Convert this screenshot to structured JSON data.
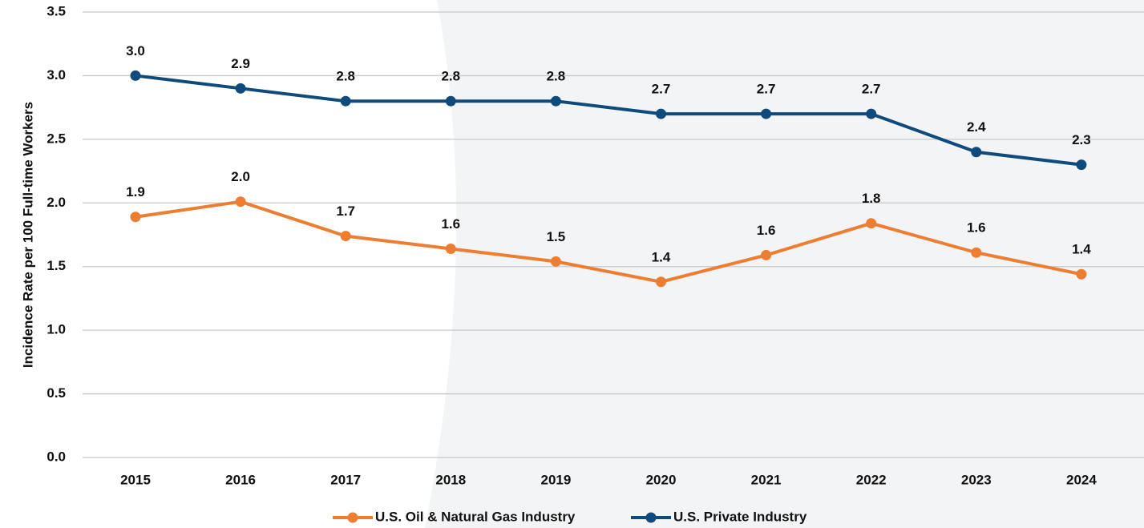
{
  "chart_data": {
    "type": "line",
    "y_label": "Incidence Rate per 100 Full-time Workers",
    "categories": [
      "2015",
      "2016",
      "2017",
      "2018",
      "2019",
      "2020",
      "2021",
      "2022",
      "2023",
      "2024"
    ],
    "series": [
      {
        "name": "U.S. Oil & Natural Gas Industry",
        "color": "#ed7d31",
        "values": [
          1.89,
          2.01,
          1.74,
          1.64,
          1.54,
          1.38,
          1.59,
          1.84,
          1.61,
          1.44
        ],
        "value_labels": [
          "1.9",
          "2.0",
          "1.7",
          "1.6",
          "1.5",
          "1.4",
          "1.6",
          "1.8",
          "1.6",
          "1.4"
        ]
      },
      {
        "name": "U.S. Private Industry",
        "color": "#0f4a7d",
        "values": [
          3.0,
          2.9,
          2.8,
          2.8,
          2.8,
          2.7,
          2.7,
          2.7,
          2.4,
          2.3
        ],
        "value_labels": [
          "3.0",
          "2.9",
          "2.8",
          "2.8",
          "2.8",
          "2.7",
          "2.7",
          "2.7",
          "2.4",
          "2.3"
        ]
      }
    ],
    "ylim": [
      0,
      3.5
    ],
    "yticks": [
      {
        "value": 0,
        "label": "0.0"
      },
      0.5,
      {
        "value": 1,
        "label": "1.0"
      },
      1.5,
      {
        "value": 2,
        "label": "2.0"
      },
      2.5,
      {
        "value": 3,
        "label": "3.0"
      },
      3.5
    ],
    "grid": true,
    "legend": "bottom"
  }
}
